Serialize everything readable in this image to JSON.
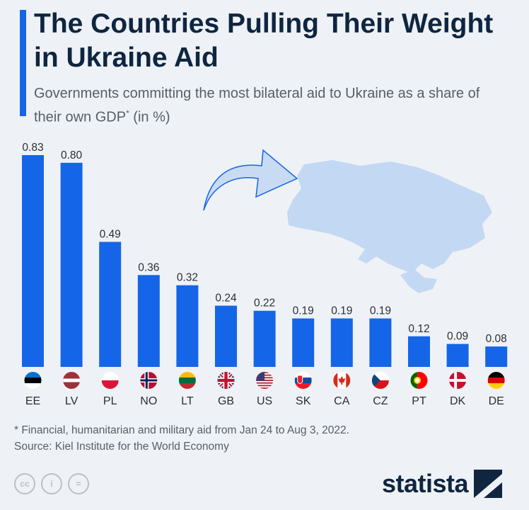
{
  "title": "The Countries Pulling Their Weight in Ukraine Aid",
  "subtitle": "Governments committing the most bilateral aid to Ukraine as a share of their own GDP",
  "subtitle_marker": "*",
  "subtitle_suffix": " (in %)",
  "footnote": "* Financial, humanitarian and military aid from Jan 24 to Aug 3, 2022.",
  "source": "Source: Kiel Institute for the World Economy",
  "brand": "statista",
  "colors": {
    "bar": "#1565e8",
    "map": "#c3d8f3",
    "title": "#0f2540",
    "accent": "#1565e8"
  },
  "chart_data": {
    "type": "bar",
    "categories": [
      "EE",
      "LV",
      "PL",
      "NO",
      "LT",
      "GB",
      "US",
      "SK",
      "CA",
      "CZ",
      "PT",
      "DK",
      "DE"
    ],
    "values": [
      0.83,
      0.8,
      0.49,
      0.36,
      0.32,
      0.24,
      0.22,
      0.19,
      0.19,
      0.19,
      0.12,
      0.09,
      0.08
    ],
    "value_labels": [
      "0.83",
      "0.80",
      "0.49",
      "0.36",
      "0.32",
      "0.24",
      "0.22",
      "0.19",
      "0.19",
      "0.19",
      "0.12",
      "0.09",
      "0.08"
    ],
    "flags": [
      "estonia-flag-icon",
      "latvia-flag-icon",
      "poland-flag-icon",
      "norway-flag-icon",
      "lithuania-flag-icon",
      "uk-flag-icon",
      "usa-flag-icon",
      "slovakia-flag-icon",
      "canada-flag-icon",
      "czechia-flag-icon",
      "portugal-flag-icon",
      "denmark-flag-icon",
      "germany-flag-icon"
    ],
    "ylim": [
      0,
      0.83
    ],
    "grid": false,
    "legend": "none"
  }
}
